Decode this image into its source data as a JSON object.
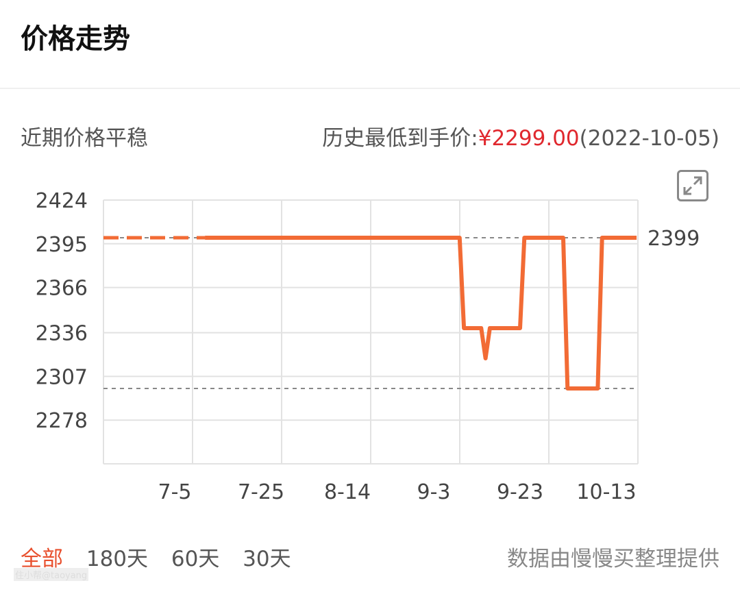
{
  "header": {
    "title": "价格走势"
  },
  "summary": {
    "status": "近期价格平稳",
    "lowest_label": "历史最低到手价:",
    "lowest_price": "¥2299.00",
    "lowest_date": "(2022-10-05)"
  },
  "expand_icon": "expand-icon",
  "range_tabs": [
    {
      "label": "全部",
      "active": true
    },
    {
      "label": "180天"
    },
    {
      "label": "60天"
    },
    {
      "label": "30天"
    }
  ],
  "source": "数据由慢慢买整理提供",
  "watermark": "住小帮@taoyang",
  "colors": {
    "line": "#f26b35",
    "accent": "#e8502e",
    "lowest_price": "#e0282e",
    "grid": "#e2e2e2"
  },
  "chart_data": {
    "type": "line",
    "title": "",
    "xlabel": "",
    "ylabel": "",
    "x_ticks": [
      "7-5",
      "7-25",
      "8-14",
      "9-3",
      "9-23",
      "10-13"
    ],
    "y_ticks": [
      2424,
      2395,
      2366,
      2336,
      2307,
      2278
    ],
    "ylim": [
      2249,
      2424
    ],
    "xlim": [
      "2022-06-18",
      "2022-10-20"
    ],
    "grid": true,
    "current_label": "2399",
    "reference_lines": [
      2399,
      2299
    ],
    "dashed_until": "2022-07-12",
    "series": [
      {
        "values": [
          [
            "2022-06-18",
            2399
          ],
          [
            "2022-09-09",
            2399
          ],
          [
            "2022-09-10",
            2339
          ],
          [
            "2022-09-14",
            2339
          ],
          [
            "2022-09-15",
            2319
          ],
          [
            "2022-09-16",
            2339
          ],
          [
            "2022-09-23",
            2339
          ],
          [
            "2022-09-24",
            2399
          ],
          [
            "2022-10-03",
            2399
          ],
          [
            "2022-10-04",
            2299
          ],
          [
            "2022-10-11",
            2299
          ],
          [
            "2022-10-12",
            2399
          ],
          [
            "2022-10-20",
            2399
          ]
        ]
      }
    ]
  }
}
